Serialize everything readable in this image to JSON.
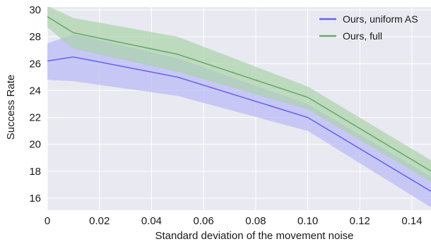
{
  "chart_data": {
    "type": "line",
    "xlabel": "Standard deviation of the movement noise",
    "ylabel": "Success Rate",
    "xlim": [
      0,
      0.15
    ],
    "ylim": [
      15,
      30
    ],
    "xticks": [
      0,
      0.02,
      0.04,
      0.06,
      0.08,
      0.1,
      0.12,
      0.14
    ],
    "xtick_labels": [
      "0",
      "0.02",
      "0.04",
      "0.06",
      "0.08",
      "0.10",
      "0.12",
      "0.14"
    ],
    "yticks": [
      16,
      18,
      20,
      22,
      24,
      26,
      28,
      30
    ],
    "ytick_labels": [
      "16",
      "18",
      "20",
      "22",
      "24",
      "26",
      "28",
      "30"
    ],
    "grid": true,
    "legend_position": "top-right",
    "x": [
      0,
      0.01,
      0.05,
      0.1,
      0.15
    ],
    "series": [
      {
        "name": "Ours, uniform AS",
        "color": "#6666ee",
        "band_color": "#b8b8f6",
        "values": [
          26.2,
          26.5,
          25.0,
          22.0,
          16.2
        ],
        "lower": [
          24.8,
          24.7,
          23.6,
          21.0,
          15.0
        ],
        "upper": [
          27.5,
          28.2,
          26.4,
          23.0,
          17.3
        ]
      },
      {
        "name": "Ours, full",
        "color": "#6aaa6a",
        "band_color": "#a9d3a9",
        "values": [
          29.5,
          28.3,
          26.7,
          23.5,
          17.7
        ],
        "lower": [
          28.7,
          27.1,
          25.4,
          22.6,
          16.9
        ],
        "upper": [
          30.3,
          29.4,
          28.0,
          24.3,
          18.5
        ]
      }
    ]
  }
}
